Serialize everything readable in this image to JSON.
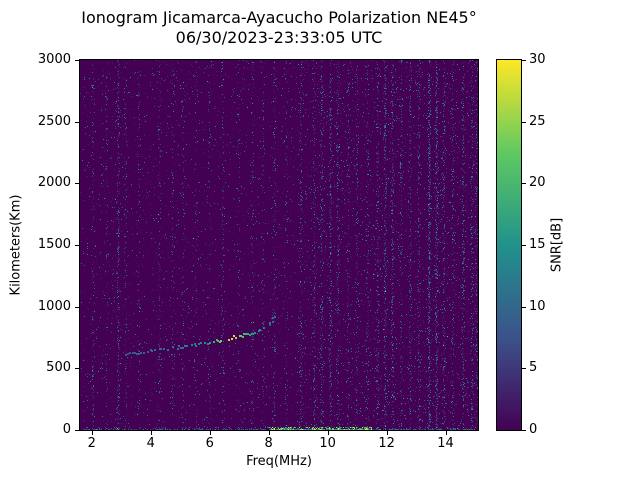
{
  "chart_data": {
    "type": "heatmap",
    "title": "Ionogram Jicamarca-Ayacucho Polarization NE45°",
    "subtitle": "06/30/2023-23:33:05 UTC",
    "xlabel": "Freq(MHz)",
    "ylabel": "Kilometers(Km)",
    "xlim": [
      1.6,
      15.1
    ],
    "ylim": [
      0,
      3000
    ],
    "xticks": [
      2,
      4,
      6,
      8,
      10,
      12,
      14
    ],
    "yticks": [
      0,
      500,
      1000,
      1500,
      2000,
      2500,
      3000
    ],
    "grid": false,
    "colorbar": {
      "label": "SNR[dB]",
      "min": 0,
      "max": 30,
      "ticks": [
        0,
        5,
        10,
        15,
        20,
        25,
        30
      ],
      "colormap": "viridis",
      "position": "right"
    },
    "colormap_stops": [
      [
        0.0,
        "#440154"
      ],
      [
        0.25,
        "#3b528b"
      ],
      [
        0.5,
        "#21918c"
      ],
      [
        0.75,
        "#5ec962"
      ],
      [
        1.0,
        "#fde725"
      ]
    ],
    "background_snr_db": 0,
    "noise_regions": [
      {
        "range": [
          1.6,
          9.0
        ],
        "density": 0.03
      },
      {
        "range": [
          9.0,
          15.1
        ],
        "density": 0.055
      }
    ],
    "rfi_streaks": [
      {
        "f": 2.05,
        "s": 0.3
      },
      {
        "f": 2.5,
        "s": 0.2
      },
      {
        "f": 2.9,
        "s": 0.55
      },
      {
        "f": 3.15,
        "s": 0.3
      },
      {
        "f": 3.6,
        "s": 0.2
      },
      {
        "f": 4.3,
        "s": 0.35
      },
      {
        "f": 4.75,
        "s": 0.2
      },
      {
        "f": 5.1,
        "s": 0.25
      },
      {
        "f": 5.55,
        "s": 0.2
      },
      {
        "f": 6.0,
        "s": 0.2
      },
      {
        "f": 6.45,
        "s": 0.3
      },
      {
        "f": 7.0,
        "s": 0.2
      },
      {
        "f": 7.45,
        "s": 0.3
      },
      {
        "f": 7.8,
        "s": 0.25
      },
      {
        "f": 8.2,
        "s": 0.4
      },
      {
        "f": 8.6,
        "s": 0.25
      },
      {
        "f": 9.1,
        "s": 0.35
      },
      {
        "f": 9.55,
        "s": 0.45
      },
      {
        "f": 9.8,
        "s": 0.5
      },
      {
        "f": 10.1,
        "s": 0.6
      },
      {
        "f": 10.35,
        "s": 0.45
      },
      {
        "f": 10.7,
        "s": 0.3
      },
      {
        "f": 11.0,
        "s": 0.35
      },
      {
        "f": 11.35,
        "s": 0.4
      },
      {
        "f": 11.7,
        "s": 0.45
      },
      {
        "f": 11.95,
        "s": 0.7
      },
      {
        "f": 12.2,
        "s": 0.55
      },
      {
        "f": 12.5,
        "s": 0.35
      },
      {
        "f": 12.8,
        "s": 0.4
      },
      {
        "f": 13.1,
        "s": 0.45
      },
      {
        "f": 13.45,
        "s": 0.85
      },
      {
        "f": 13.7,
        "s": 0.75
      },
      {
        "f": 13.95,
        "s": 0.5
      },
      {
        "f": 14.25,
        "s": 0.4
      },
      {
        "f": 14.6,
        "s": 0.55
      },
      {
        "f": 14.9,
        "s": 0.45
      },
      {
        "f": 15.05,
        "s": 0.35
      }
    ],
    "echo_trace": [
      {
        "f": 2.9,
        "km": 620,
        "snr": 6
      },
      {
        "f": 3.2,
        "km": 625,
        "snr": 5
      },
      {
        "f": 3.5,
        "km": 635,
        "snr": 6
      },
      {
        "f": 3.8,
        "km": 645,
        "snr": 7
      },
      {
        "f": 4.1,
        "km": 655,
        "snr": 8
      },
      {
        "f": 4.4,
        "km": 662,
        "snr": 8
      },
      {
        "f": 4.7,
        "km": 670,
        "snr": 9
      },
      {
        "f": 5.0,
        "km": 680,
        "snr": 9
      },
      {
        "f": 5.3,
        "km": 690,
        "snr": 10
      },
      {
        "f": 5.6,
        "km": 700,
        "snr": 11
      },
      {
        "f": 5.9,
        "km": 712,
        "snr": 13
      },
      {
        "f": 6.2,
        "km": 725,
        "snr": 18
      },
      {
        "f": 6.5,
        "km": 740,
        "snr": 25
      },
      {
        "f": 6.8,
        "km": 755,
        "snr": 28
      },
      {
        "f": 7.1,
        "km": 772,
        "snr": 20
      },
      {
        "f": 7.4,
        "km": 790,
        "snr": 14
      },
      {
        "f": 7.7,
        "km": 815,
        "snr": 12
      },
      {
        "f": 7.9,
        "km": 845,
        "snr": 10
      },
      {
        "f": 8.05,
        "km": 880,
        "snr": 9
      },
      {
        "f": 8.15,
        "km": 915,
        "snr": 8
      },
      {
        "f": 8.25,
        "km": 950,
        "snr": 8
      }
    ],
    "ground_band": {
      "km_range": [
        0,
        20
      ],
      "f_range": [
        1.7,
        15.05
      ],
      "bright_f_range": [
        8.0,
        11.5
      ]
    }
  }
}
